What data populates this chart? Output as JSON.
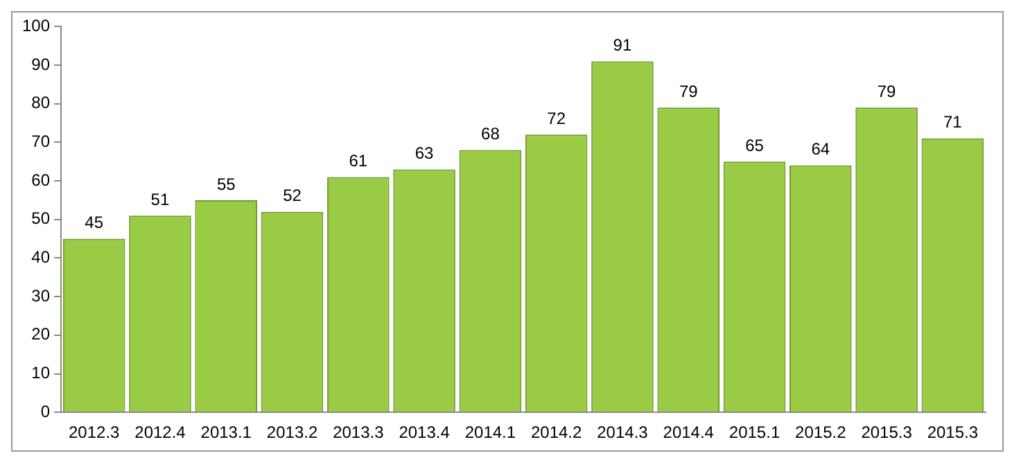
{
  "chart_data": {
    "type": "bar",
    "categories": [
      "2012.3",
      "2012.4",
      "2013.1",
      "2013.2",
      "2013.3",
      "2013.4",
      "2014.1",
      "2014.2",
      "2014.3",
      "2014.4",
      "2015.1",
      "2015.2",
      "2015.3",
      "2015.3"
    ],
    "values": [
      45,
      51,
      55,
      52,
      61,
      63,
      68,
      72,
      91,
      79,
      65,
      64,
      79,
      71
    ],
    "color": "#99cc44",
    "ylim": [
      0,
      100
    ],
    "yticks": [
      0,
      10,
      20,
      30,
      40,
      50,
      60,
      70,
      80,
      90,
      100
    ],
    "grid": false,
    "legend": false,
    "data_labels": true
  }
}
